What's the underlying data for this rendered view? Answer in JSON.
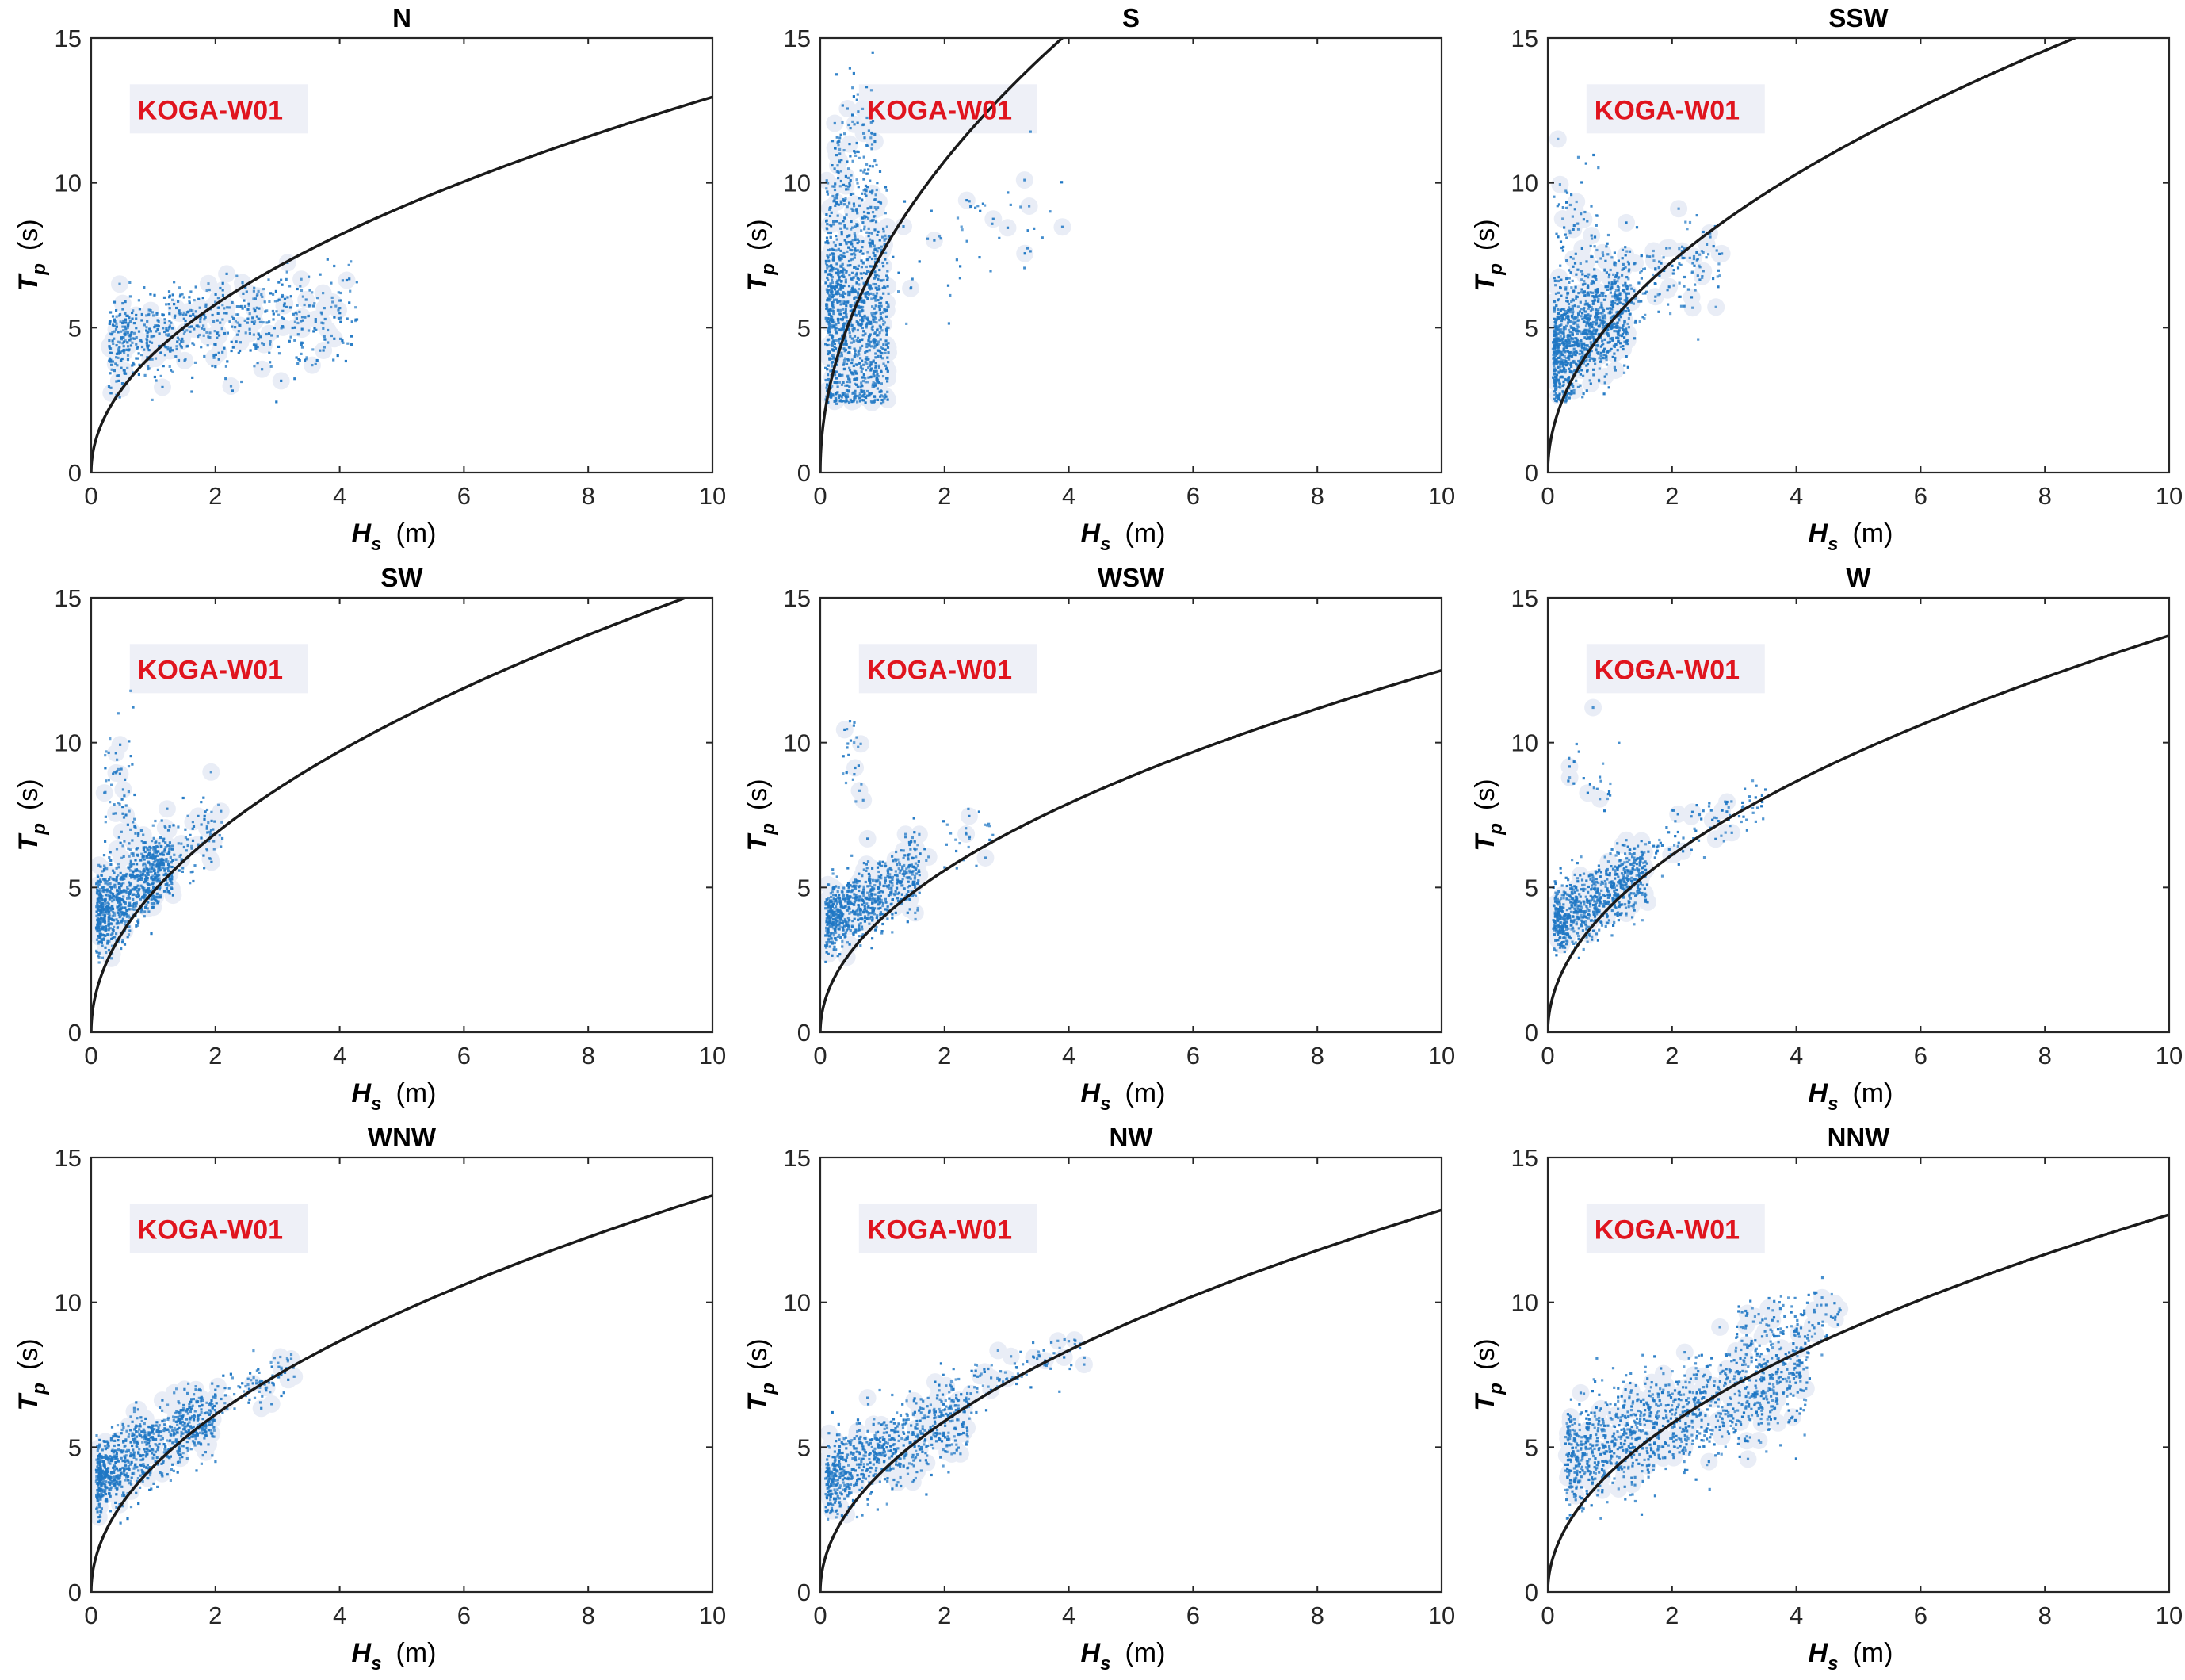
{
  "figure": {
    "station_label": "KOGA-W01",
    "colors": {
      "points": "#1f77c4",
      "curve": "#1a1a1a",
      "station": "#e0141e"
    }
  },
  "chart_data": [
    {
      "type": "scatter",
      "title": "N",
      "xlabel": {
        "symbol": "H",
        "sub": "s",
        "unit": "(m)"
      },
      "ylabel": {
        "symbol": "T",
        "sub": "p",
        "unit": "(s)"
      },
      "xlim": [
        0,
        10
      ],
      "ylim": [
        0,
        15
      ],
      "xticks": [
        "0",
        "2",
        "4",
        "6",
        "8",
        "10"
      ],
      "yticks": [
        "0",
        "5",
        "10",
        "15"
      ],
      "annotation": "KOGA-W01",
      "curve": {
        "form": "Tp = a*sqrt(Hs)",
        "a": 4.1
      },
      "clusters": [
        {
          "n": 520,
          "x0": 0.3,
          "x1": 4.3,
          "pow": 1.6,
          "tpBase": 3.9,
          "tpScale": 0.68,
          "tpExp": 0.55,
          "spread": 0.85
        },
        {
          "n": 170,
          "x0": 0.5,
          "x1": 3.3,
          "pow": 1.2,
          "tpBase": 4.3,
          "tpScale": 0.85,
          "tpExp": 0.55,
          "spread": 0.45
        }
      ]
    },
    {
      "type": "scatter",
      "title": "S",
      "xlabel": {
        "symbol": "H",
        "sub": "s",
        "unit": "(m)"
      },
      "ylabel": {
        "symbol": "T",
        "sub": "p",
        "unit": "(s)"
      },
      "xlim": [
        0,
        10
      ],
      "ylim": [
        0,
        15
      ],
      "xticks": [
        "0",
        "2",
        "4",
        "6",
        "8",
        "10"
      ],
      "yticks": [
        "0",
        "5",
        "10",
        "15"
      ],
      "annotation": "KOGA-W01",
      "curve": {
        "form": "Tp = a*sqrt(Hs)",
        "a": 7.6
      },
      "clusters": [
        {
          "n": 1150,
          "x0": 0.1,
          "x1": 1.1,
          "pow": 1.3,
          "tpBase": 5.5,
          "tpScale": 0.0,
          "tpExp": 1,
          "spread": 2.1
        },
        {
          "n": 140,
          "x0": 0.2,
          "x1": 0.9,
          "pow": 1.0,
          "tpBase": 10.5,
          "tpScale": 0.0,
          "tpExp": 1,
          "spread": 1.4
        },
        {
          "n": 60,
          "x0": 1.0,
          "x1": 3.9,
          "pow": 1.0,
          "tpBase": 6.2,
          "tpScale": 0.7,
          "tpExp": 1,
          "spread": 1.1
        }
      ]
    },
    {
      "type": "scatter",
      "title": "SSW",
      "xlabel": {
        "symbol": "H",
        "sub": "s",
        "unit": "(m)"
      },
      "ylabel": {
        "symbol": "T",
        "sub": "p",
        "unit": "(s)"
      },
      "xlim": [
        0,
        10
      ],
      "ylim": [
        0,
        15
      ],
      "xticks": [
        "0",
        "2",
        "4",
        "6",
        "8",
        "10"
      ],
      "yticks": [
        "0",
        "5",
        "10",
        "15"
      ],
      "annotation": "KOGA-W01",
      "curve": {
        "form": "Tp = a*sqrt(Hs)",
        "a": 5.15
      },
      "clusters": [
        {
          "n": 950,
          "x0": 0.1,
          "x1": 1.3,
          "pow": 1.5,
          "tpBase": 4.0,
          "tpScale": 1.4,
          "tpExp": 1,
          "spread": 1.0
        },
        {
          "n": 220,
          "x0": 0.6,
          "x1": 2.8,
          "pow": 1.2,
          "tpBase": 4.8,
          "tpScale": 1.0,
          "tpExp": 1,
          "spread": 0.9
        },
        {
          "n": 70,
          "x0": 0.1,
          "x1": 0.8,
          "pow": 1.0,
          "tpBase": 8.5,
          "tpScale": 0.0,
          "tpExp": 1,
          "spread": 1.3
        }
      ]
    },
    {
      "type": "scatter",
      "title": "SW",
      "xlabel": {
        "symbol": "H",
        "sub": "s",
        "unit": "(m)"
      },
      "ylabel": {
        "symbol": "T",
        "sub": "p",
        "unit": "(s)"
      },
      "xlim": [
        0,
        10
      ],
      "ylim": [
        0,
        15
      ],
      "xticks": [
        "0",
        "2",
        "4",
        "6",
        "8",
        "10"
      ],
      "yticks": [
        "0",
        "5",
        "10",
        "15"
      ],
      "annotation": "KOGA-W01",
      "curve": {
        "form": "Tp = a*sqrt(Hs)",
        "a": 4.85
      },
      "clusters": [
        {
          "n": 780,
          "x0": 0.1,
          "x1": 1.3,
          "pow": 1.5,
          "tpBase": 3.9,
          "tpScale": 1.5,
          "tpExp": 1,
          "spread": 0.75
        },
        {
          "n": 140,
          "x0": 0.8,
          "x1": 2.1,
          "pow": 1.0,
          "tpBase": 4.7,
          "tpScale": 1.1,
          "tpExp": 1,
          "spread": 0.7
        },
        {
          "n": 60,
          "x0": 0.2,
          "x1": 0.7,
          "pow": 1.0,
          "tpBase": 8.6,
          "tpScale": 0.0,
          "tpExp": 1,
          "spread": 1.5
        }
      ]
    },
    {
      "type": "scatter",
      "title": "WSW",
      "xlabel": {
        "symbol": "H",
        "sub": "s",
        "unit": "(m)"
      },
      "ylabel": {
        "symbol": "T",
        "sub": "p",
        "unit": "(s)"
      },
      "xlim": [
        0,
        10
      ],
      "ylim": [
        0,
        15
      ],
      "xticks": [
        "0",
        "2",
        "4",
        "6",
        "8",
        "10"
      ],
      "yticks": [
        "0",
        "5",
        "10",
        "15"
      ],
      "annotation": "KOGA-W01",
      "curve": {
        "form": "Tp = a*sqrt(Hs)",
        "a": 3.95
      },
      "clusters": [
        {
          "n": 720,
          "x0": 0.1,
          "x1": 1.6,
          "pow": 1.5,
          "tpBase": 3.7,
          "tpScale": 1.2,
          "tpExp": 1,
          "spread": 0.6
        },
        {
          "n": 40,
          "x0": 1.2,
          "x1": 2.8,
          "pow": 1.0,
          "tpBase": 5.4,
          "tpScale": 0.5,
          "tpExp": 1,
          "spread": 0.5
        },
        {
          "n": 25,
          "x0": 0.3,
          "x1": 0.7,
          "pow": 1.0,
          "tpBase": 9.6,
          "tpScale": 0.0,
          "tpExp": 1,
          "spread": 0.9
        }
      ]
    },
    {
      "type": "scatter",
      "title": "W",
      "xlabel": {
        "symbol": "H",
        "sub": "s",
        "unit": "(m)"
      },
      "ylabel": {
        "symbol": "T",
        "sub": "p",
        "unit": "(s)"
      },
      "xlim": [
        0,
        10
      ],
      "ylim": [
        0,
        15
      ],
      "xticks": [
        "0",
        "2",
        "4",
        "6",
        "8",
        "10"
      ],
      "yticks": [
        "0",
        "5",
        "10",
        "15"
      ],
      "annotation": "KOGA-W01",
      "curve": {
        "form": "Tp = a*sqrt(Hs)",
        "a": 4.33
      },
      "clusters": [
        {
          "n": 720,
          "x0": 0.1,
          "x1": 1.6,
          "pow": 1.4,
          "tpBase": 3.7,
          "tpScale": 1.1,
          "tpExp": 1,
          "spread": 0.6
        },
        {
          "n": 120,
          "x0": 1.0,
          "x1": 3.5,
          "pow": 1.0,
          "tpBase": 4.6,
          "tpScale": 1.0,
          "tpExp": 1,
          "spread": 0.5
        },
        {
          "n": 25,
          "x0": 0.3,
          "x1": 1.2,
          "pow": 1.0,
          "tpBase": 9.2,
          "tpScale": 0.0,
          "tpExp": 1,
          "spread": 0.8
        }
      ]
    },
    {
      "type": "scatter",
      "title": "WNW",
      "xlabel": {
        "symbol": "H",
        "sub": "s",
        "unit": "(m)"
      },
      "ylabel": {
        "symbol": "T",
        "sub": "p",
        "unit": "(s)"
      },
      "xlim": [
        0,
        10
      ],
      "ylim": [
        0,
        15
      ],
      "xticks": [
        "0",
        "2",
        "4",
        "6",
        "8",
        "10"
      ],
      "yticks": [
        "0",
        "5",
        "10",
        "15"
      ],
      "annotation": "KOGA-W01",
      "curve": {
        "form": "Tp = a*sqrt(Hs)",
        "a": 4.33
      },
      "clusters": [
        {
          "n": 820,
          "x0": 0.1,
          "x1": 2.0,
          "pow": 1.6,
          "tpBase": 3.6,
          "tpScale": 1.4,
          "tpExp": 0.8,
          "spread": 0.65
        },
        {
          "n": 120,
          "x0": 1.2,
          "x1": 3.3,
          "pow": 1.0,
          "tpBase": 4.9,
          "tpScale": 0.85,
          "tpExp": 1,
          "spread": 0.45
        }
      ]
    },
    {
      "type": "scatter",
      "title": "NW",
      "xlabel": {
        "symbol": "H",
        "sub": "s",
        "unit": "(m)"
      },
      "ylabel": {
        "symbol": "T",
        "sub": "p",
        "unit": "(s)"
      },
      "xlim": [
        0,
        10
      ],
      "ylim": [
        0,
        15
      ],
      "xticks": [
        "0",
        "2",
        "4",
        "6",
        "8",
        "10"
      ],
      "yticks": [
        "0",
        "5",
        "10",
        "15"
      ],
      "annotation": "KOGA-W01",
      "curve": {
        "form": "Tp = a*sqrt(Hs)",
        "a": 4.17
      },
      "clusters": [
        {
          "n": 720,
          "x0": 0.1,
          "x1": 2.4,
          "pow": 1.5,
          "tpBase": 3.6,
          "tpScale": 1.25,
          "tpExp": 0.8,
          "spread": 0.7
        },
        {
          "n": 130,
          "x0": 1.5,
          "x1": 4.3,
          "pow": 1.0,
          "tpBase": 4.6,
          "tpScale": 0.95,
          "tpExp": 1,
          "spread": 0.5
        }
      ]
    },
    {
      "type": "scatter",
      "title": "NNW",
      "xlabel": {
        "symbol": "H",
        "sub": "s",
        "unit": "(m)"
      },
      "ylabel": {
        "symbol": "T",
        "sub": "p",
        "unit": "(s)"
      },
      "xlim": [
        0,
        10
      ],
      "ylim": [
        0,
        15
      ],
      "xticks": [
        "0",
        "2",
        "4",
        "6",
        "8",
        "10"
      ],
      "yticks": [
        "0",
        "5",
        "10",
        "15"
      ],
      "annotation": "KOGA-W01",
      "curve": {
        "form": "Tp = a*sqrt(Hs)",
        "a": 4.12
      },
      "clusters": [
        {
          "n": 1250,
          "x0": 0.3,
          "x1": 4.2,
          "pow": 1.3,
          "tpBase": 4.2,
          "tpScale": 0.95,
          "tpExp": 0.9,
          "spread": 0.95
        },
        {
          "n": 120,
          "x0": 3.0,
          "x1": 4.7,
          "pow": 1.0,
          "tpBase": 7.5,
          "tpScale": 0.5,
          "tpExp": 1,
          "spread": 0.5
        }
      ]
    }
  ]
}
